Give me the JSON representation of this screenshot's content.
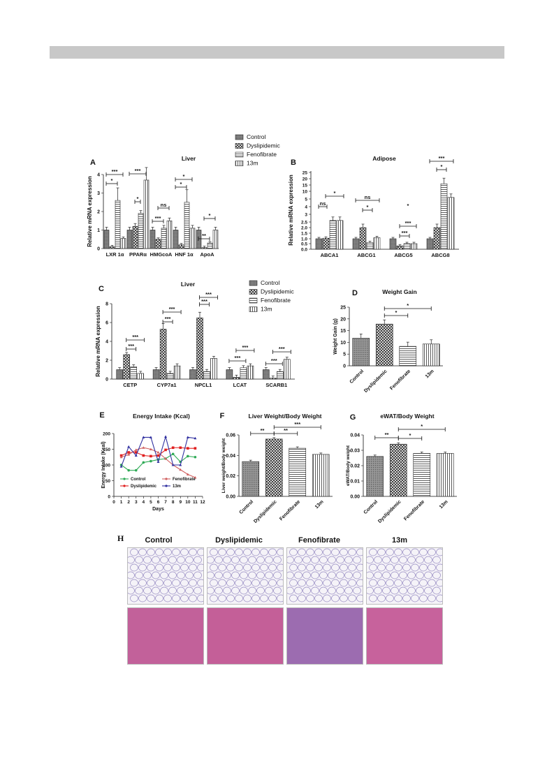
{
  "colors": {
    "bar_fill": "#777777",
    "axis": "#111111",
    "control": "#2eaa55",
    "dyslipidemic": "#e02020",
    "fenofibrate": "#d06060",
    "m13": "#3030a0",
    "adipose_bg": "#f4f2f8",
    "liver_bg": "#c45c96"
  },
  "legend": {
    "items": [
      "Control",
      "Dyslipidemic",
      "Fenofibrate",
      "13m"
    ]
  },
  "panel_h": {
    "label": "H",
    "titles": [
      "Control",
      "Dyslipidemic",
      "Fenofibrate",
      "13m"
    ]
  },
  "chart_data": [
    {
      "id": "A",
      "type": "bar",
      "title": "Liver",
      "ylabel": "Relative mRNA expression",
      "ylim": [
        0,
        4
      ],
      "yticks": [
        "0",
        "1",
        "2",
        "3",
        "4"
      ],
      "categories": [
        "LXR 1α",
        "PPARα",
        "HMGcoA",
        "HNF 1α",
        "ApoA"
      ],
      "series": [
        {
          "name": "Control",
          "values": [
            1,
            1,
            1,
            1,
            1
          ]
        },
        {
          "name": "Dyslipidemic",
          "values": [
            0.1,
            1.2,
            0.5,
            0.2,
            0.05
          ]
        },
        {
          "name": "Fenofibrate",
          "values": [
            2.6,
            1.9,
            1.1,
            2.5,
            0.3
          ]
        },
        {
          "name": "13m",
          "values": [
            0.55,
            3.7,
            1.5,
            1.1,
            1.0
          ]
        }
      ],
      "annotations": [
        "*",
        "***",
        "*",
        "***",
        "ns",
        "***",
        "*",
        "*",
        "**",
        "*"
      ]
    },
    {
      "id": "B",
      "type": "bar",
      "title": "Adipose",
      "ylabel": "Relative mRNA expression",
      "yticks": [
        "0.0",
        "0.5",
        "1.0",
        "1.5",
        "2.0",
        "2.5",
        "3",
        "4",
        "5",
        "10",
        "15",
        "20",
        "25"
      ],
      "categories": [
        "ABCA1",
        "ABCG1",
        "ABCG5",
        "ABCG8"
      ],
      "series": [
        {
          "name": "Control",
          "values": [
            1,
            1,
            1,
            1
          ]
        },
        {
          "name": "Dyslipidemic",
          "values": [
            1.05,
            2,
            0.3,
            2
          ]
        },
        {
          "name": "Fenofibrate",
          "values": [
            2.6,
            0.6,
            0.5,
            16
          ]
        },
        {
          "name": "13m",
          "values": [
            2.6,
            1.1,
            0.5,
            6
          ]
        }
      ],
      "annotations": [
        "ns",
        "*",
        "ns",
        "*",
        "***",
        "***",
        "*",
        "***"
      ]
    },
    {
      "id": "C",
      "type": "bar",
      "title": "Liver",
      "ylabel": "Relative mRNA expression",
      "ylim": [
        0,
        8
      ],
      "yticks": [
        "0",
        "2",
        "4",
        "6",
        "8"
      ],
      "categories": [
        "CETP",
        "CYP7a1",
        "NPCL1",
        "LCAT",
        "SCARB1"
      ],
      "series": [
        {
          "name": "Control",
          "values": [
            1,
            1,
            1,
            1,
            1
          ]
        },
        {
          "name": "Dyslipidemic",
          "values": [
            2.6,
            5.3,
            6.5,
            0.2,
            0.1
          ]
        },
        {
          "name": "Fenofibrate",
          "values": [
            1.3,
            0.6,
            0.8,
            1.2,
            0.8
          ]
        },
        {
          "name": "13m",
          "values": [
            0.6,
            1.4,
            2.2,
            1.4,
            2.1
          ]
        }
      ],
      "annotations": [
        "***",
        "***",
        "***",
        "***",
        "***",
        "***",
        "***",
        "***",
        "***",
        "***"
      ]
    },
    {
      "id": "D",
      "type": "bar",
      "title": "Weight Gain",
      "ylabel": "Weight Gain (g)",
      "ylim": [
        0,
        25
      ],
      "yticks": [
        "0",
        "5",
        "10",
        "15",
        "20",
        "25"
      ],
      "categories": [
        "Control",
        "Dyslipidemic",
        "Fenofibrate",
        "13m"
      ],
      "values": [
        11.8,
        17.8,
        8.3,
        9.3
      ],
      "annotations": [
        "*",
        "*"
      ]
    },
    {
      "id": "E",
      "type": "line",
      "title": "Energy Intake (Kcal)",
      "xlabel": "Days",
      "ylabel": "Energy Intake (Kcal)",
      "xlim": [
        0,
        12
      ],
      "ylim": [
        0,
        200
      ],
      "xticks": [
        "0",
        "1",
        "2",
        "3",
        "4",
        "5",
        "6",
        "7",
        "8",
        "9",
        "10",
        "11",
        "12"
      ],
      "yticks": [
        "0",
        "50",
        "100",
        "150",
        "200"
      ],
      "x": [
        1,
        2,
        3,
        4,
        5,
        6,
        7,
        8,
        9,
        10,
        11
      ],
      "series": [
        {
          "name": "Control",
          "values": [
            100,
            83,
            83,
            108,
            112,
            117,
            120,
            135,
            110,
            128,
            125
          ]
        },
        {
          "name": "Dyslipidemic",
          "values": [
            130,
            140,
            140,
            130,
            128,
            130,
            148,
            155,
            155,
            153,
            153
          ]
        },
        {
          "name": "Fenofibrate",
          "values": [
            125,
            133,
            148,
            155,
            150,
            140,
            120,
            100,
            85,
            70,
            60
          ]
        },
        {
          "name": "13m",
          "values": [
            95,
            158,
            130,
            188,
            188,
            110,
            190,
            100,
            100,
            188,
            185
          ]
        }
      ]
    },
    {
      "id": "F",
      "type": "bar",
      "title": "Liver Weight/Body Weight",
      "ylabel": "Liver weight/Body weight",
      "ylim": [
        0,
        0.06
      ],
      "yticks": [
        "0.00",
        "0.02",
        "0.04",
        "0.06"
      ],
      "categories": [
        "Control",
        "Dyslipidemic",
        "Fenofibrate",
        "13m"
      ],
      "values": [
        0.034,
        0.056,
        0.047,
        0.041
      ],
      "annotations": [
        "**",
        "**",
        "***"
      ]
    },
    {
      "id": "G",
      "type": "bar",
      "title": "eWAT/Body Weight",
      "ylabel": "eWAT/Body weight",
      "ylim": [
        0,
        0.04
      ],
      "yticks": [
        "0.00",
        "0.01",
        "0.02",
        "0.03",
        "0.04"
      ],
      "categories": [
        "Control",
        "Dyslipidemic",
        "Fenofibrate",
        "13m"
      ],
      "values": [
        0.026,
        0.034,
        0.028,
        0.028
      ],
      "annotations": [
        "**",
        "*",
        "*"
      ]
    }
  ]
}
